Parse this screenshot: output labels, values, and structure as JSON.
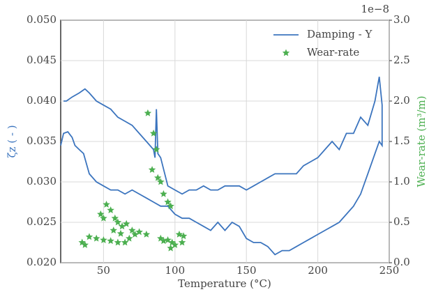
{
  "chart_data": {
    "type": "line",
    "x_label": "Temperature (°C)",
    "y_label": "ζz ( - )",
    "y2_label": "Wear-rate (m³/m)",
    "y2_offset_text": "1e−8",
    "xlim": [
      20,
      250
    ],
    "xticks": [
      50,
      100,
      150,
      200,
      250
    ],
    "ylim": [
      0.02,
      0.05
    ],
    "yticks": [
      {
        "value": 0.02,
        "label": "0.020"
      },
      {
        "value": 0.025,
        "label": "0.025"
      },
      {
        "value": 0.03,
        "label": "0.030"
      },
      {
        "value": 0.035,
        "label": "0.035"
      },
      {
        "value": 0.04,
        "label": "0.040"
      },
      {
        "value": 0.045,
        "label": "0.045"
      },
      {
        "value": 0.05,
        "label": "0.050"
      }
    ],
    "y2lim": [
      0,
      3
    ],
    "y2ticks": [
      {
        "value": 0,
        "label": "0.0"
      },
      0.5,
      {
        "value": 1,
        "label": "1.0"
      },
      1.5,
      {
        "value": 2,
        "label": "2.0"
      },
      2.5,
      {
        "value": 3,
        "label": "3.0"
      }
    ],
    "grid": true,
    "legend": "upper right",
    "series": [
      {
        "name": "Damping - Y",
        "type": "line",
        "color": "#3b74be",
        "x": [
          20,
          22,
          25,
          28,
          30,
          33,
          36,
          40,
          45,
          50,
          55,
          60,
          65,
          70,
          75,
          80,
          85,
          90,
          95,
          100,
          105,
          110,
          115,
          120,
          125,
          130,
          135,
          140,
          145,
          150,
          155,
          160,
          165,
          170,
          175,
          180,
          185,
          190,
          195,
          200,
          205,
          210,
          215,
          220,
          225,
          230,
          235,
          240,
          243,
          245,
          245,
          243,
          240,
          235,
          230,
          225,
          220,
          215,
          210,
          205,
          200,
          195,
          190,
          185,
          180,
          175,
          170,
          165,
          160,
          155,
          150,
          145,
          140,
          135,
          130,
          125,
          120,
          115,
          110,
          105,
          100,
          95,
          90,
          88,
          87,
          86,
          85,
          80,
          75,
          70,
          65,
          60,
          55,
          50,
          45,
          40,
          37,
          33,
          28,
          24,
          22
        ],
        "values": [
          0.0345,
          0.036,
          0.0362,
          0.0355,
          0.0345,
          0.034,
          0.0335,
          0.031,
          0.03,
          0.0295,
          0.029,
          0.029,
          0.0285,
          0.029,
          0.0285,
          0.028,
          0.0275,
          0.027,
          0.027,
          0.026,
          0.0255,
          0.0255,
          0.025,
          0.0245,
          0.024,
          0.025,
          0.024,
          0.025,
          0.0245,
          0.023,
          0.0225,
          0.0225,
          0.022,
          0.021,
          0.0215,
          0.0215,
          0.022,
          0.0225,
          0.023,
          0.0235,
          0.024,
          0.0245,
          0.025,
          0.026,
          0.027,
          0.0285,
          0.031,
          0.0335,
          0.035,
          0.0345,
          0.0395,
          0.043,
          0.04,
          0.037,
          0.038,
          0.036,
          0.036,
          0.034,
          0.035,
          0.034,
          0.033,
          0.0325,
          0.032,
          0.031,
          0.031,
          0.031,
          0.031,
          0.0305,
          0.03,
          0.0295,
          0.029,
          0.0295,
          0.0295,
          0.0295,
          0.029,
          0.029,
          0.0295,
          0.029,
          0.029,
          0.0285,
          0.029,
          0.0295,
          0.033,
          0.0335,
          0.039,
          0.033,
          0.034,
          0.035,
          0.036,
          0.037,
          0.0375,
          0.038,
          0.039,
          0.0395,
          0.04,
          0.041,
          0.0415,
          0.041,
          0.0405,
          0.04,
          0.04
        ]
      },
      {
        "name": "Wear-rate",
        "type": "scatter",
        "axis": "y2",
        "color": "#4caf50",
        "x": [
          81,
          85,
          87,
          84,
          88,
          90,
          92,
          95,
          97,
          52,
          55,
          58,
          60,
          63,
          66,
          70,
          75,
          80,
          50,
          48,
          45,
          40,
          35,
          37,
          50,
          55,
          60,
          65,
          68,
          72,
          57,
          62,
          90,
          95,
          98,
          100,
          103,
          106,
          97,
          105,
          92
        ],
        "values": [
          1.85,
          1.6,
          1.4,
          1.15,
          1.05,
          1.0,
          0.85,
          0.75,
          0.7,
          0.72,
          0.65,
          0.55,
          0.5,
          0.45,
          0.48,
          0.4,
          0.38,
          0.35,
          0.55,
          0.6,
          0.3,
          0.32,
          0.25,
          0.22,
          0.28,
          0.27,
          0.25,
          0.25,
          0.3,
          0.35,
          0.4,
          0.36,
          0.3,
          0.28,
          0.25,
          0.22,
          0.35,
          0.33,
          0.18,
          0.25,
          0.27
        ]
      }
    ]
  }
}
